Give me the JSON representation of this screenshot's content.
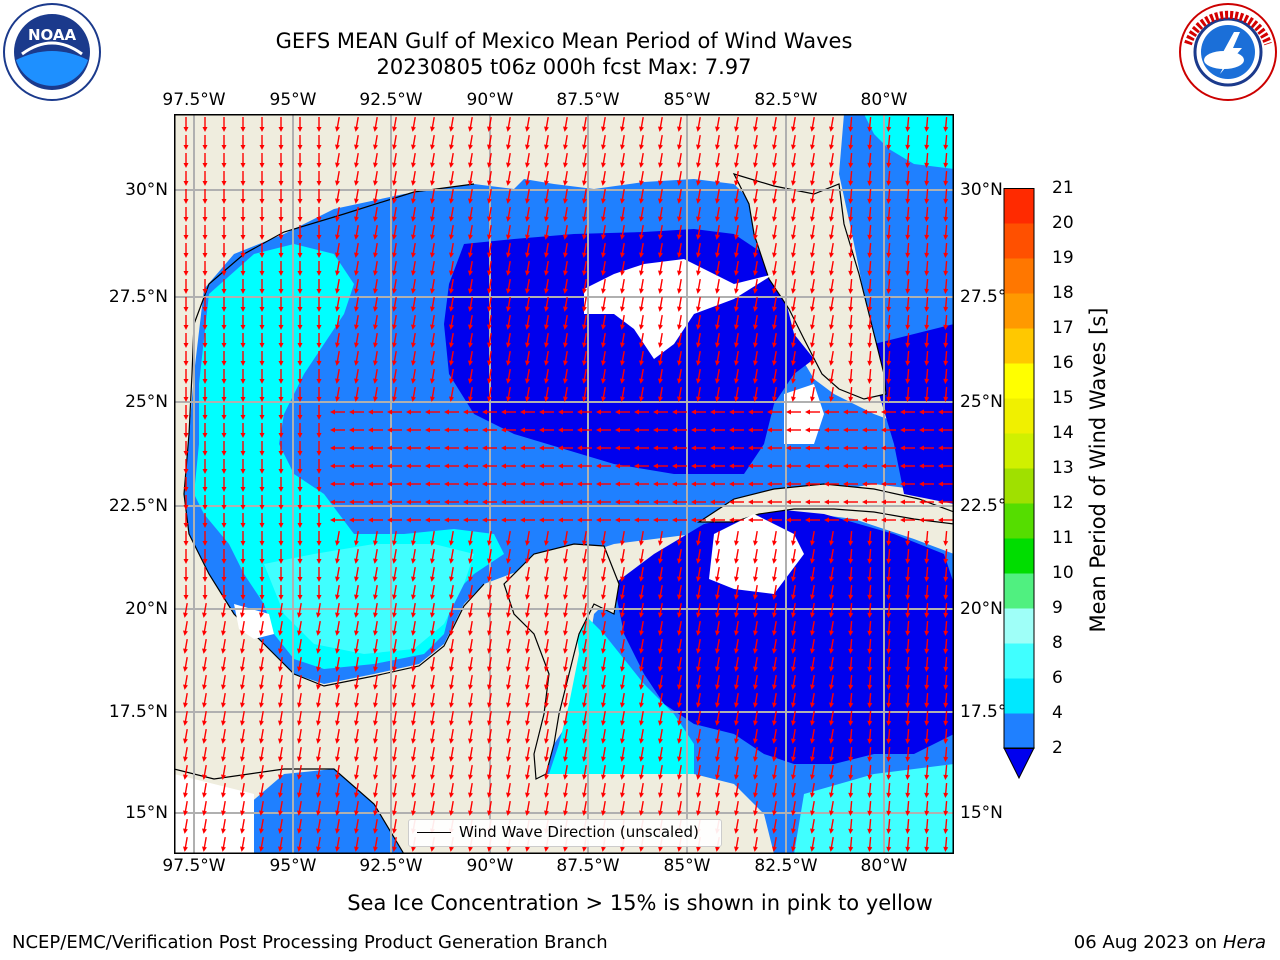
{
  "header": {
    "title_line1": "GEFS MEAN Gulf of Mexico Mean Period of Wind Waves",
    "title_line2": "20230805 t06z 000h fcst   Max: 7.97"
  },
  "logos": {
    "noaa_text": "NOAA",
    "noaa_ring_text": "NATIONAL OCEANIC AND ATMOSPHERIC ADMINISTRATION · U.S. DEPARTMENT OF COMMERCE",
    "nws_ring_text": "NATIONAL WEATHER SERVICE"
  },
  "axes": {
    "lon_labels": [
      "97.5°W",
      "95°W",
      "92.5°W",
      "90°W",
      "87.5°W",
      "85°W",
      "82.5°W",
      "80°W"
    ],
    "lat_labels_left": [
      "30°N",
      "27.5°N",
      "25°N",
      "22.5°N",
      "20°N",
      "17.5°N",
      "15°N"
    ],
    "lat_labels_right": [
      "30°N",
      "27.5°N",
      "25°N",
      "22.5°N",
      "20°N",
      "17.5°N",
      "15°N"
    ]
  },
  "legend": {
    "label": "Wind Wave Direction (unscaled)"
  },
  "colorbar": {
    "label": "Mean Period of Wind Waves [s]",
    "ticks": [
      "2",
      "4",
      "6",
      "8",
      "9",
      "10",
      "11",
      "12",
      "13",
      "14",
      "15",
      "16",
      "17",
      "18",
      "19",
      "20",
      "21"
    ],
    "colors": [
      "#1f80ff",
      "#00e8ff",
      "#40ffff",
      "#9ffff8",
      "#50f080",
      "#00dd00",
      "#55dd00",
      "#a0e000",
      "#d0f000",
      "#f0f000",
      "#ffff00",
      "#ffc800",
      "#ff9900",
      "#ff7700",
      "#ff5000",
      "#ff2a00",
      "#ff0000"
    ],
    "extend_color": "#0000ee"
  },
  "map_colors": {
    "land": "#efedde",
    "deep": "#0000ee",
    "mid": "#1f80ff",
    "light": "#00ffff",
    "pale": "#40ffff",
    "arrow": "#ff0000"
  },
  "footer": {
    "note": "Sea Ice Concentration > 15% is shown in pink to yellow",
    "left": "NCEP/EMC/Verification Post Processing Product Generation Branch",
    "right_date": "06 Aug 2023 on",
    "right_host": "Hera"
  }
}
